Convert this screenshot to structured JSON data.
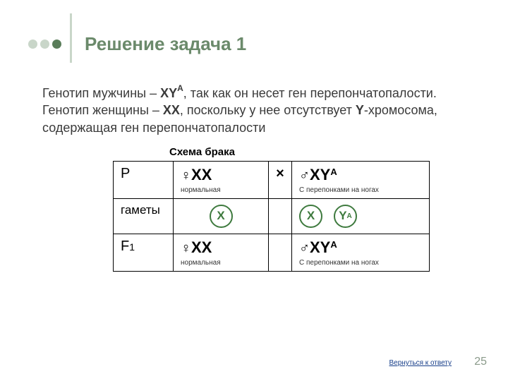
{
  "colors": {
    "accent_dark": "#5a7d5a",
    "accent_light": "#c9d6c9",
    "title_color": "#6b8a6b",
    "gamete_border": "#3e7a3e",
    "gamete_text": "#3e7a3e",
    "link_color": "#183f8a",
    "page_num_color": "#8a9a8a",
    "text_color": "#3a3a3a"
  },
  "title": "Решение задача 1",
  "paragraph": {
    "line1_pre": "Генотип мужчины – ",
    "male_gt": "XY",
    "male_gt_sup": "А",
    "line1_post": ", так как он несет ген перепончатопалости.",
    "line2_pre": "Генотип женщины – ",
    "female_gt": "XX",
    "line2_mid": ", поскольку у нее отсутствует ",
    "y_chrom": "Y",
    "line2_post": "-хромосома, содержащая ген перепончатопалости"
  },
  "scheme_label": "Схема брака",
  "table": {
    "row1": {
      "label": "P",
      "female_symbol": "♀",
      "female_gt": "XX",
      "female_desc": "нормальная",
      "cross": "×",
      "male_symbol": "♂",
      "male_gt": "XY",
      "male_gt_sup": "А",
      "male_desc": "С перепонками на ногах"
    },
    "row2": {
      "label": "гаметы",
      "female_gametes": [
        "X"
      ],
      "male_gametes": [
        {
          "text": "X",
          "sup": ""
        },
        {
          "text": "Y",
          "sup": "A"
        }
      ]
    },
    "row3": {
      "label_main": "F",
      "label_sub": "1",
      "female_symbol": "♀",
      "female_gt": "XX",
      "female_desc": "нормальная",
      "male_symbol": "♂",
      "male_gt": "XY",
      "male_gt_sup": "А",
      "male_desc": "С перепонками на ногах"
    }
  },
  "footer_link": "Вернуться к ответу",
  "page_number": "25"
}
